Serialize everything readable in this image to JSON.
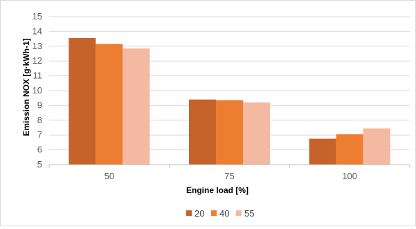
{
  "chart_data": {
    "type": "bar",
    "title": "",
    "xlabel": "Engine load [%]",
    "ylabel": "Emission NOX [g·kWh-1]",
    "categories": [
      "50",
      "75",
      "100"
    ],
    "series": [
      {
        "name": "20",
        "color": "#c5632a",
        "values": [
          13.55,
          9.4,
          6.75
        ]
      },
      {
        "name": "40",
        "color": "#ed7d31",
        "values": [
          13.15,
          9.35,
          7.05
        ]
      },
      {
        "name": "55",
        "color": "#f4b9a2",
        "values": [
          12.85,
          9.2,
          7.45
        ]
      }
    ],
    "ylim": [
      5,
      15
    ],
    "yticks": [
      "5",
      "6",
      "7",
      "8",
      "9",
      "10",
      "11",
      "12",
      "13",
      "14",
      "15"
    ],
    "grid": true,
    "legend_position": "bottom"
  }
}
